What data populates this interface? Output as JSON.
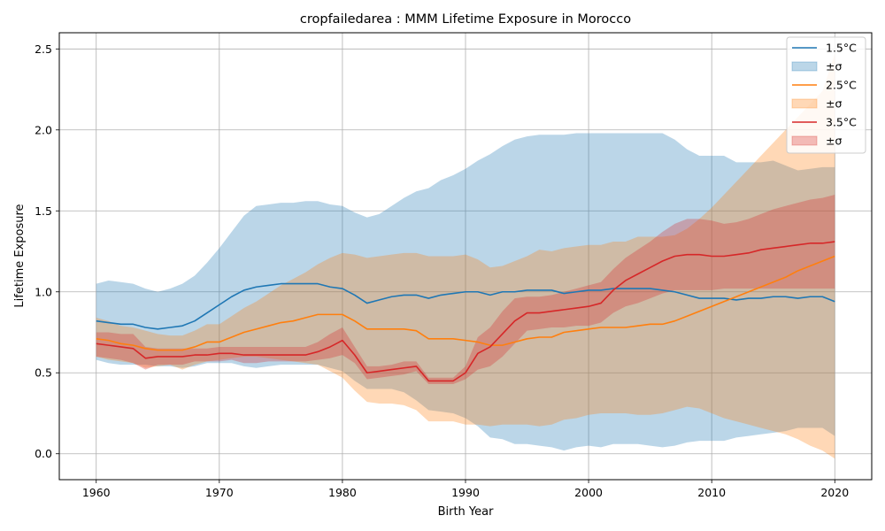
{
  "chart_data": {
    "type": "area",
    "title": "cropfailedarea : MMM Lifetime Exposure in Morocco",
    "xlabel": "Birth Year",
    "ylabel": "Lifetime Exposure",
    "xlim": [
      1957,
      2023
    ],
    "ylim": [
      -0.16,
      2.6
    ],
    "xticks": [
      1960,
      1970,
      1980,
      1990,
      2000,
      2010,
      2020
    ],
    "yticks": [
      0.0,
      0.5,
      1.0,
      1.5,
      2.0,
      2.5
    ],
    "xtick_labels": [
      "1960",
      "1970",
      "1980",
      "1990",
      "2000",
      "2010",
      "2020"
    ],
    "ytick_labels": [
      "0.0",
      "0.5",
      "1.0",
      "1.5",
      "2.0",
      "2.5"
    ],
    "grid": true,
    "legend_position": "top-right",
    "legend": [
      "1.5°C",
      "±σ",
      "2.5°C",
      "±σ",
      "3.5°C",
      "±σ"
    ],
    "x_years": [
      1960,
      1961,
      1962,
      1963,
      1964,
      1965,
      1966,
      1967,
      1968,
      1969,
      1970,
      1971,
      1972,
      1973,
      1974,
      1975,
      1976,
      1977,
      1978,
      1979,
      1980,
      1981,
      1982,
      1983,
      1984,
      1985,
      1986,
      1987,
      1988,
      1989,
      1990,
      1991,
      1992,
      1993,
      1994,
      1995,
      1996,
      1997,
      1998,
      1999,
      2000,
      2001,
      2002,
      2003,
      2004,
      2005,
      2006,
      2007,
      2008,
      2009,
      2010,
      2011,
      2012,
      2013,
      2014,
      2015,
      2016,
      2017,
      2018,
      2019,
      2020
    ],
    "series": [
      {
        "name": "1.5°C",
        "color": "#1f77b4",
        "band_color": "#1f77b4",
        "mean": [
          0.82,
          0.81,
          0.8,
          0.8,
          0.78,
          0.77,
          0.78,
          0.79,
          0.82,
          0.87,
          0.92,
          0.97,
          1.01,
          1.03,
          1.04,
          1.05,
          1.05,
          1.05,
          1.05,
          1.03,
          1.02,
          0.98,
          0.93,
          0.95,
          0.97,
          0.98,
          0.98,
          0.96,
          0.98,
          0.99,
          1.0,
          1.0,
          0.98,
          1.0,
          1.0,
          1.01,
          1.01,
          1.01,
          0.99,
          1.0,
          1.01,
          1.01,
          1.02,
          1.02,
          1.02,
          1.02,
          1.01,
          1.0,
          0.98,
          0.96,
          0.96,
          0.96,
          0.95,
          0.96,
          0.96,
          0.97,
          0.97,
          0.96,
          0.97,
          0.97,
          0.94
        ],
        "upper": [
          1.05,
          1.07,
          1.06,
          1.05,
          1.02,
          1.0,
          1.02,
          1.05,
          1.1,
          1.18,
          1.27,
          1.37,
          1.47,
          1.53,
          1.54,
          1.55,
          1.55,
          1.56,
          1.56,
          1.54,
          1.53,
          1.49,
          1.46,
          1.48,
          1.53,
          1.58,
          1.62,
          1.64,
          1.69,
          1.72,
          1.76,
          1.81,
          1.85,
          1.9,
          1.94,
          1.96,
          1.97,
          1.97,
          1.97,
          1.98,
          1.98,
          1.98,
          1.98,
          1.98,
          1.98,
          1.98,
          1.98,
          1.94,
          1.88,
          1.84,
          1.84,
          1.84,
          1.8,
          1.8,
          1.8,
          1.81,
          1.78,
          1.75,
          1.76,
          1.77,
          1.77
        ],
        "lower": [
          0.58,
          0.56,
          0.55,
          0.55,
          0.55,
          0.54,
          0.54,
          0.53,
          0.54,
          0.56,
          0.56,
          0.56,
          0.54,
          0.53,
          0.54,
          0.55,
          0.55,
          0.55,
          0.55,
          0.53,
          0.51,
          0.45,
          0.4,
          0.4,
          0.4,
          0.38,
          0.33,
          0.27,
          0.26,
          0.25,
          0.22,
          0.17,
          0.1,
          0.09,
          0.06,
          0.06,
          0.05,
          0.04,
          0.02,
          0.04,
          0.05,
          0.04,
          0.06,
          0.06,
          0.06,
          0.05,
          0.04,
          0.05,
          0.07,
          0.08,
          0.08,
          0.08,
          0.1,
          0.11,
          0.12,
          0.13,
          0.14,
          0.16,
          0.16,
          0.16,
          0.11
        ]
      },
      {
        "name": "2.5°C",
        "color": "#ff7f0e",
        "band_color": "#ff7f0e",
        "mean": [
          0.71,
          0.7,
          0.68,
          0.67,
          0.65,
          0.64,
          0.64,
          0.64,
          0.66,
          0.69,
          0.69,
          0.72,
          0.75,
          0.77,
          0.79,
          0.81,
          0.82,
          0.84,
          0.86,
          0.86,
          0.86,
          0.82,
          0.77,
          0.77,
          0.77,
          0.77,
          0.76,
          0.71,
          0.71,
          0.71,
          0.7,
          0.69,
          0.67,
          0.67,
          0.69,
          0.71,
          0.72,
          0.72,
          0.75,
          0.76,
          0.77,
          0.78,
          0.78,
          0.78,
          0.79,
          0.8,
          0.8,
          0.82,
          0.85,
          0.88,
          0.91,
          0.94,
          0.97,
          1.0,
          1.03,
          1.06,
          1.09,
          1.13,
          1.16,
          1.19,
          1.22
        ],
        "upper": [
          0.84,
          0.82,
          0.79,
          0.78,
          0.76,
          0.74,
          0.73,
          0.73,
          0.76,
          0.8,
          0.8,
          0.85,
          0.9,
          0.94,
          0.99,
          1.04,
          1.08,
          1.12,
          1.17,
          1.21,
          1.24,
          1.23,
          1.21,
          1.22,
          1.23,
          1.24,
          1.24,
          1.22,
          1.22,
          1.22,
          1.23,
          1.2,
          1.15,
          1.16,
          1.19,
          1.22,
          1.26,
          1.25,
          1.27,
          1.28,
          1.29,
          1.29,
          1.31,
          1.31,
          1.34,
          1.34,
          1.34,
          1.35,
          1.39,
          1.45,
          1.52,
          1.6,
          1.68,
          1.76,
          1.84,
          1.92,
          2.0,
          2.08,
          2.16,
          2.24,
          2.47
        ],
        "lower": [
          0.6,
          0.58,
          0.57,
          0.56,
          0.53,
          0.54,
          0.55,
          0.52,
          0.55,
          0.57,
          0.58,
          0.59,
          0.6,
          0.6,
          0.59,
          0.58,
          0.57,
          0.56,
          0.55,
          0.51,
          0.47,
          0.39,
          0.32,
          0.31,
          0.31,
          0.3,
          0.27,
          0.2,
          0.2,
          0.2,
          0.18,
          0.18,
          0.17,
          0.18,
          0.18,
          0.18,
          0.17,
          0.18,
          0.21,
          0.22,
          0.24,
          0.25,
          0.25,
          0.25,
          0.24,
          0.24,
          0.25,
          0.27,
          0.29,
          0.28,
          0.25,
          0.22,
          0.2,
          0.18,
          0.16,
          0.14,
          0.12,
          0.09,
          0.05,
          0.02,
          -0.03
        ]
      },
      {
        "name": "3.5°C",
        "color": "#d62728",
        "band_color": "#d62728",
        "mean": [
          0.68,
          0.67,
          0.66,
          0.65,
          0.59,
          0.6,
          0.6,
          0.6,
          0.61,
          0.61,
          0.62,
          0.62,
          0.61,
          0.61,
          0.61,
          0.61,
          0.61,
          0.61,
          0.63,
          0.66,
          0.7,
          0.61,
          0.5,
          0.51,
          0.52,
          0.53,
          0.54,
          0.45,
          0.45,
          0.45,
          0.5,
          0.62,
          0.66,
          0.74,
          0.82,
          0.87,
          0.87,
          0.88,
          0.89,
          0.9,
          0.91,
          0.93,
          1.01,
          1.07,
          1.11,
          1.15,
          1.19,
          1.22,
          1.23,
          1.23,
          1.22,
          1.22,
          1.23,
          1.24,
          1.26,
          1.27,
          1.28,
          1.29,
          1.3,
          1.3,
          1.31
        ],
        "upper": [
          0.75,
          0.75,
          0.74,
          0.74,
          0.66,
          0.65,
          0.65,
          0.65,
          0.65,
          0.65,
          0.66,
          0.66,
          0.66,
          0.66,
          0.66,
          0.66,
          0.66,
          0.66,
          0.69,
          0.74,
          0.78,
          0.66,
          0.54,
          0.54,
          0.55,
          0.57,
          0.57,
          0.47,
          0.47,
          0.47,
          0.54,
          0.72,
          0.78,
          0.88,
          0.96,
          0.97,
          0.97,
          0.98,
          1.0,
          1.02,
          1.04,
          1.06,
          1.14,
          1.21,
          1.26,
          1.31,
          1.37,
          1.42,
          1.45,
          1.45,
          1.44,
          1.42,
          1.43,
          1.45,
          1.48,
          1.51,
          1.53,
          1.55,
          1.57,
          1.58,
          1.6
        ],
        "lower": [
          0.6,
          0.59,
          0.58,
          0.56,
          0.52,
          0.55,
          0.55,
          0.55,
          0.57,
          0.57,
          0.57,
          0.58,
          0.56,
          0.56,
          0.57,
          0.57,
          0.57,
          0.57,
          0.58,
          0.59,
          0.61,
          0.56,
          0.46,
          0.47,
          0.48,
          0.49,
          0.51,
          0.43,
          0.43,
          0.43,
          0.46,
          0.52,
          0.54,
          0.6,
          0.68,
          0.76,
          0.77,
          0.78,
          0.78,
          0.79,
          0.79,
          0.81,
          0.87,
          0.91,
          0.93,
          0.96,
          0.99,
          1.01,
          1.01,
          1.01,
          1.01,
          1.02,
          1.02,
          1.02,
          1.02,
          1.02,
          1.02,
          1.02,
          1.02,
          1.02,
          1.02
        ]
      }
    ]
  }
}
